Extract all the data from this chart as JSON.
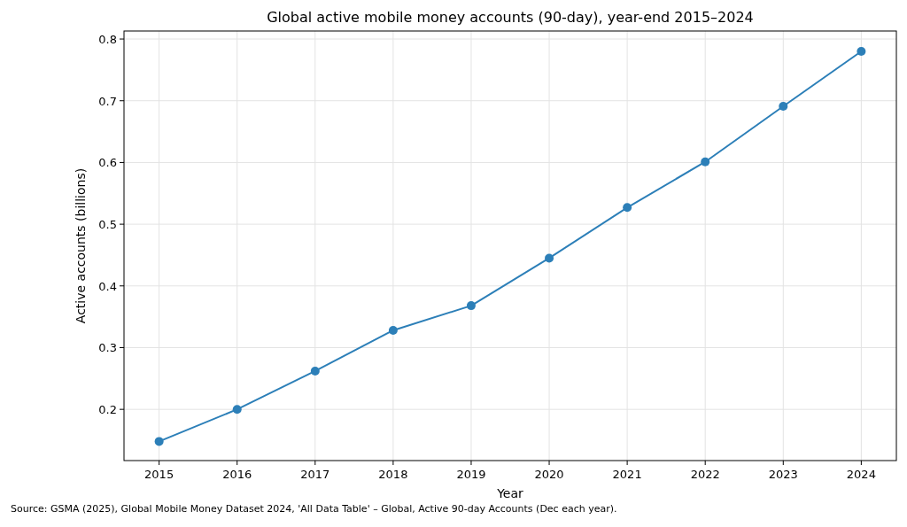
{
  "chart_data": {
    "type": "line",
    "title": "Global active mobile money accounts (90-day), year-end 2015–2024",
    "xlabel": "Year",
    "ylabel": "Active accounts (billions)",
    "x": [
      2015,
      2016,
      2017,
      2018,
      2019,
      2020,
      2021,
      2022,
      2023,
      2024
    ],
    "series": [
      {
        "color": "#2c7fb8",
        "values": [
          0.148,
          0.2,
          0.262,
          0.328,
          0.368,
          0.445,
          0.527,
          0.601,
          0.691,
          0.78
        ]
      }
    ],
    "xlim": [
      2014.55,
      2024.45
    ],
    "xticks": [
      2015,
      2016,
      2017,
      2018,
      2019,
      2020,
      2021,
      2022,
      2023,
      2024
    ],
    "ylim": [
      0.117,
      0.813
    ],
    "yticks": [
      {
        "value": 0.2,
        "label": "0.2"
      },
      {
        "value": 0.3,
        "label": "0.3"
      },
      {
        "value": 0.4,
        "label": "0.4"
      },
      {
        "value": 0.5,
        "label": "0.5"
      },
      {
        "value": 0.6,
        "label": "0.6"
      },
      {
        "value": 0.7,
        "label": "0.7"
      },
      {
        "value": 0.8,
        "label": "0.8"
      }
    ],
    "grid": true,
    "marker": "circle",
    "line_style": "solid",
    "annotations": [
      "Source: GSMA (2025), Global Mobile Money Dataset 2024, 'All Data Table' – Global, Active 90-day Accounts (Dec each year)."
    ]
  }
}
